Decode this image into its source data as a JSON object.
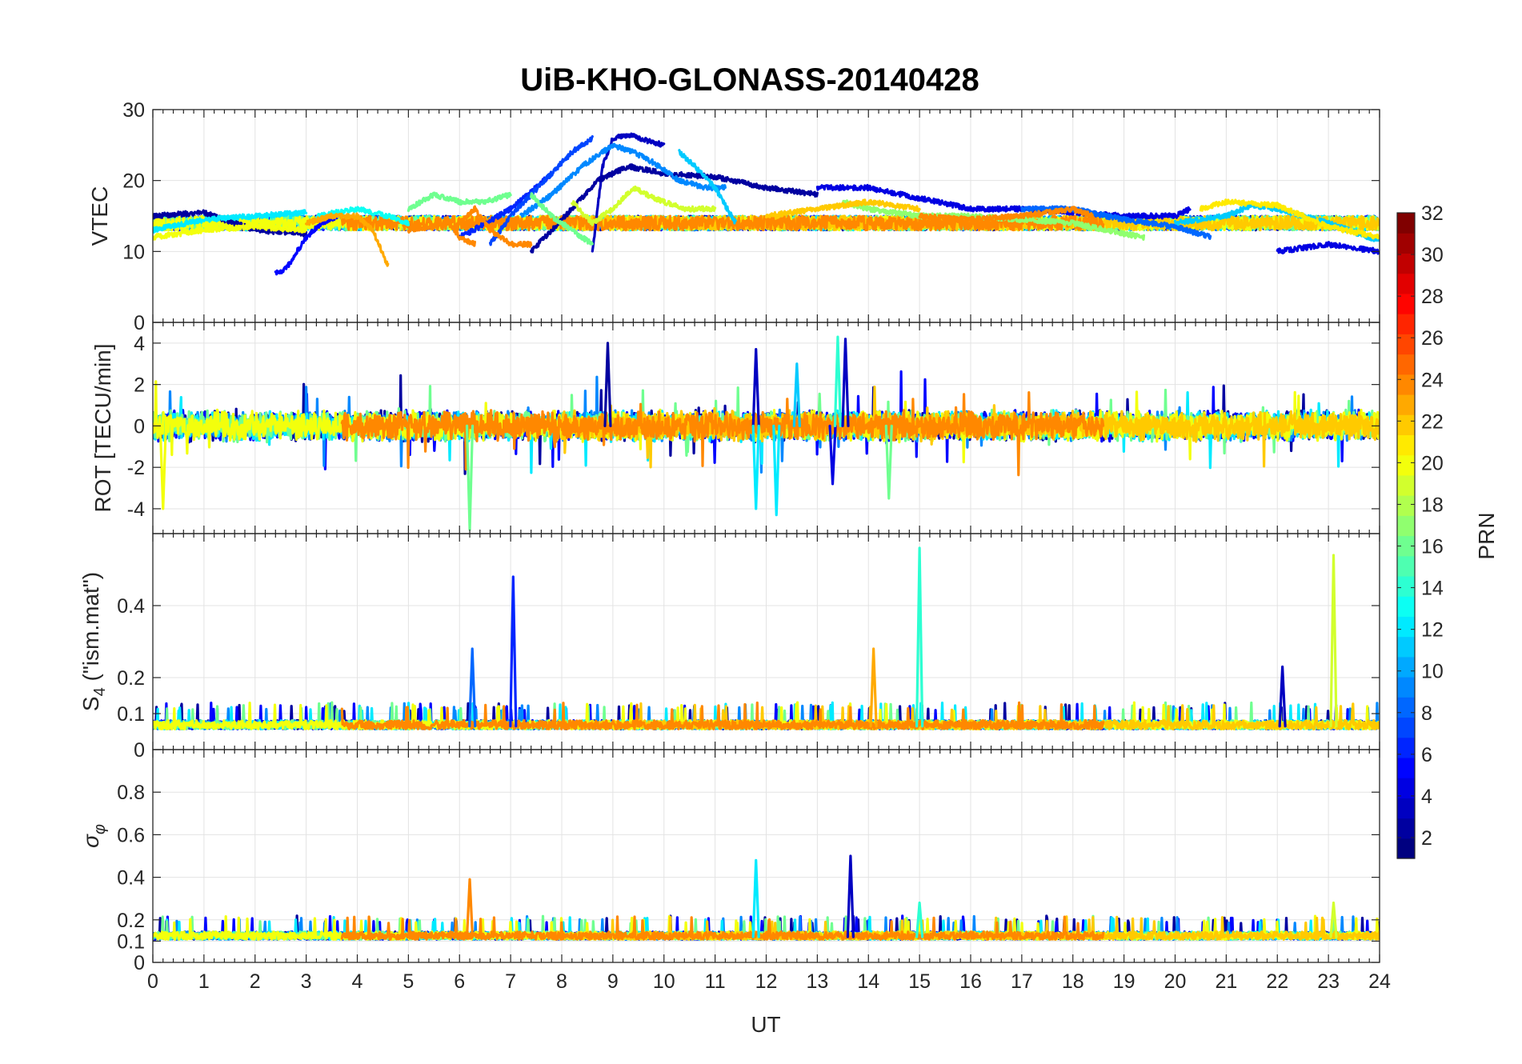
{
  "chart_data": {
    "type": "line",
    "title": "UiB-KHO-GLONASS-20140428",
    "xlabel": "UT",
    "xlim": [
      0,
      24
    ],
    "xticks": [
      "0",
      "1",
      "2",
      "3",
      "4",
      "5",
      "6",
      "7",
      "8",
      "9",
      "10",
      "11",
      "12",
      "13",
      "14",
      "15",
      "16",
      "17",
      "18",
      "19",
      "20",
      "21",
      "22",
      "23",
      "24"
    ],
    "grid": true,
    "panels": [
      {
        "id": "vtec",
        "ylabel": "VTEC",
        "ylim": [
          0,
          30
        ],
        "yticks": [
          {
            "v": 0,
            "t": "0"
          },
          {
            "v": 10,
            "t": "10"
          },
          {
            "v": 20,
            "t": "20"
          },
          {
            "v": 30,
            "t": "30"
          }
        ],
        "baseline": 14,
        "noise": 0.7,
        "series": [
          {
            "prn": 2,
            "x": [
              0,
              1,
              2,
              3
            ],
            "y": [
              15,
              15.5,
              13,
              12.5
            ]
          },
          {
            "prn": 3,
            "x": [
              8.6,
              8.8,
              9.0,
              9.3,
              9.7,
              10.0
            ],
            "y": [
              10,
              22,
              26,
              26.5,
              25.5,
              25
            ]
          },
          {
            "prn": 2,
            "x": [
              7.4,
              7.8,
              8.2,
              8.7,
              9.3,
              10.0,
              11.0,
              12.0,
              13.0
            ],
            "y": [
              10,
              13,
              16,
              20,
              22,
              21,
              20.5,
              19,
              18
            ]
          },
          {
            "prn": 4,
            "x": [
              13.0,
              14.0,
              15.0,
              16.0,
              17.0,
              18.0,
              19.0,
              20.0,
              20.3
            ],
            "y": [
              19,
              19,
              17.5,
              16,
              16,
              15.5,
              15,
              15,
              16
            ]
          },
          {
            "prn": 4,
            "x": [
              22.0,
              22.5,
              23.0,
              24.0
            ],
            "y": [
              10,
              10.5,
              11,
              10
            ]
          },
          {
            "prn": 5,
            "x": [
              2.4,
              2.6,
              3.0,
              3.3,
              3.6
            ],
            "y": [
              7,
              7.5,
              12,
              14,
              15
            ]
          },
          {
            "prn": 6,
            "x": [
              6.0,
              6.4,
              7.0,
              7.5,
              7.8
            ],
            "y": [
              12,
              13.5,
              16,
              19,
              21
            ]
          },
          {
            "prn": 7,
            "x": [
              6.6,
              7.0,
              7.4,
              7.8,
              8.2,
              8.6
            ],
            "y": [
              11,
              15,
              18,
              21,
              24,
              26
            ]
          },
          {
            "prn": 8,
            "x": [
              17.0,
              18.0,
              19.0,
              20.0,
              20.7
            ],
            "y": [
              16,
              16,
              14.5,
              13.5,
              12
            ]
          },
          {
            "prn": 9,
            "x": [
              7.2,
              7.8,
              8.4,
              9.0,
              9.4,
              9.8,
              10.3,
              10.8,
              11.2
            ],
            "y": [
              15,
              18,
              22,
              25,
              24,
              22.5,
              20,
              19,
              19
            ]
          },
          {
            "prn": 11,
            "x": [
              10.3,
              10.6,
              11.0,
              11.4
            ],
            "y": [
              24,
              22,
              19,
              14
            ]
          },
          {
            "prn": 11,
            "x": [
              20.0,
              21.0,
              21.5,
              22.0,
              23.0,
              24.0
            ],
            "y": [
              14,
              15,
              16.5,
              16,
              14,
              11.5
            ]
          },
          {
            "prn": 12,
            "x": [
              0,
              1,
              2,
              3
            ],
            "y": [
              13,
              14.5,
              15,
              15.5
            ]
          },
          {
            "prn": 13,
            "x": [
              3.2,
              4.0,
              4.6,
              5.0
            ],
            "y": [
              15,
              16,
              15,
              14
            ]
          },
          {
            "prn": 16,
            "x": [
              7.4,
              7.8,
              8.2,
              8.6
            ],
            "y": [
              18,
              15,
              13,
              11
            ]
          },
          {
            "prn": 17,
            "x": [
              13.5,
              14.0,
              15.0,
              16.0,
              17.0,
              18.0,
              19.0,
              19.4
            ],
            "y": [
              17,
              16,
              15,
              15,
              14.5,
              14,
              12.5,
              12
            ]
          },
          {
            "prn": 16,
            "x": [
              5.0,
              5.5,
              6.0,
              6.5,
              7.0
            ],
            "y": [
              16,
              18,
              17,
              17,
              18
            ]
          },
          {
            "prn": 19,
            "x": [
              8.2,
              8.6,
              9.0,
              9.4,
              9.8,
              10.4,
              11.0
            ],
            "y": [
              17,
              14,
              16,
              19,
              17.5,
              16,
              16
            ]
          },
          {
            "prn": 20,
            "x": [
              0,
              1,
              2,
              3
            ],
            "y": [
              12,
              13,
              13.5,
              13
            ]
          },
          {
            "prn": 21,
            "x": [
              20.5,
              21.0,
              22.0,
              23.0,
              24.0
            ],
            "y": [
              16,
              17,
              16.5,
              13.5,
              12
            ]
          },
          {
            "prn": 22,
            "x": [
              12.0,
              13.0,
              14.0,
              15.0
            ],
            "y": [
              15,
              16,
              17,
              16
            ]
          },
          {
            "prn": 24,
            "x": [
              15.0,
              16.0,
              17.0,
              18.0,
              18.4
            ],
            "y": [
              15,
              14.5,
              15,
              16,
              15
            ]
          },
          {
            "prn": 23,
            "x": [
              3.0,
              3.5,
              4.0,
              4.3,
              4.6
            ],
            "y": [
              14,
              15,
              15,
              13,
              8
            ]
          },
          {
            "prn": 24,
            "x": [
              5.0,
              5.4,
              5.8,
              6.0,
              6.3
            ],
            "y": [
              13,
              13.5,
              14,
              12,
              11
            ]
          },
          {
            "prn": 24,
            "x": [
              6.0,
              6.3,
              6.6,
              7.0,
              7.4
            ],
            "y": [
              14,
              16,
              13,
              11,
              11
            ]
          }
        ]
      },
      {
        "id": "rot",
        "ylabel": "ROT [TECU/min]",
        "ylim": [
          -5.2,
          5
        ],
        "yticks": [
          {
            "v": -4,
            "t": "-4"
          },
          {
            "v": -2,
            "t": "-2"
          },
          {
            "v": 0,
            "t": "0"
          },
          {
            "v": 2,
            "t": "2"
          },
          {
            "v": 4,
            "t": "4"
          }
        ],
        "baseline": 0,
        "noise": 0.5,
        "spikes": [
          {
            "x": 0.2,
            "y": -4,
            "prn": 20
          },
          {
            "x": 6.2,
            "y": -5,
            "prn": 16
          },
          {
            "x": 8.9,
            "y": 4,
            "prn": 2
          },
          {
            "x": 11.8,
            "y": 3.7,
            "prn": 3
          },
          {
            "x": 11.8,
            "y": -4,
            "prn": 12
          },
          {
            "x": 12.2,
            "y": -4.3,
            "prn": 12
          },
          {
            "x": 12.6,
            "y": 3,
            "prn": 11
          },
          {
            "x": 13.3,
            "y": -2.8,
            "prn": 4
          },
          {
            "x": 13.4,
            "y": 4.3,
            "prn": 14
          },
          {
            "x": 13.55,
            "y": 4.2,
            "prn": 3
          },
          {
            "x": 14.4,
            "y": -3.5,
            "prn": 16
          }
        ]
      },
      {
        "id": "s4",
        "ylabel": "S4 (\"ism.mat\")",
        "ylim": [
          0,
          0.6
        ],
        "yticks": [
          {
            "v": 0,
            "t": "0"
          },
          {
            "v": 0.1,
            "t": "0.1"
          },
          {
            "v": 0.2,
            "t": "0.2"
          },
          {
            "v": 0.4,
            "t": "0.4"
          }
        ],
        "baseline": 0.065,
        "noise": 0.02,
        "spikes": [
          {
            "x": 6.25,
            "y": 0.28,
            "prn": 8
          },
          {
            "x": 7.05,
            "y": 0.48,
            "prn": 6
          },
          {
            "x": 14.1,
            "y": 0.28,
            "prn": 23
          },
          {
            "x": 15.0,
            "y": 0.56,
            "prn": 14
          },
          {
            "x": 22.1,
            "y": 0.23,
            "prn": 3
          },
          {
            "x": 23.1,
            "y": 0.54,
            "prn": 19
          }
        ]
      },
      {
        "id": "sigma",
        "ylabel": "σφ",
        "ylim": [
          0,
          1
        ],
        "yticks": [
          {
            "v": 0,
            "t": "0"
          },
          {
            "v": 0.1,
            "t": "0.1"
          },
          {
            "v": 0.2,
            "t": "0.2"
          },
          {
            "v": 0.4,
            "t": "0.4"
          },
          {
            "v": 0.6,
            "t": "0.6"
          },
          {
            "v": 0.8,
            "t": "0.8"
          }
        ],
        "baseline": 0.12,
        "noise": 0.03,
        "spikes": [
          {
            "x": 6.2,
            "y": 0.39,
            "prn": 24
          },
          {
            "x": 11.8,
            "y": 0.48,
            "prn": 12
          },
          {
            "x": 13.65,
            "y": 0.5,
            "prn": 3
          },
          {
            "x": 15.0,
            "y": 0.28,
            "prn": 14
          },
          {
            "x": 23.1,
            "y": 0.28,
            "prn": 19
          }
        ]
      }
    ],
    "colorbar": {
      "label": "PRN",
      "range": [
        1,
        32
      ],
      "ticks": [
        "2",
        "4",
        "6",
        "8",
        "10",
        "12",
        "14",
        "16",
        "18",
        "20",
        "22",
        "24",
        "26",
        "28",
        "30",
        "32"
      ],
      "colormap": "jet"
    },
    "background_tracks": [
      {
        "prn": 2,
        "start": 0,
        "end": 24
      },
      {
        "prn": 5,
        "start": 0,
        "end": 24
      },
      {
        "prn": 9,
        "start": 0,
        "end": 24
      },
      {
        "prn": 12,
        "start": 0,
        "end": 24
      },
      {
        "prn": 16,
        "start": 0,
        "end": 24
      },
      {
        "prn": 20,
        "start": 0,
        "end": 24
      },
      {
        "prn": 22,
        "start": 8,
        "end": 24
      },
      {
        "prn": 24,
        "start": 3.7,
        "end": 18.6
      }
    ]
  }
}
